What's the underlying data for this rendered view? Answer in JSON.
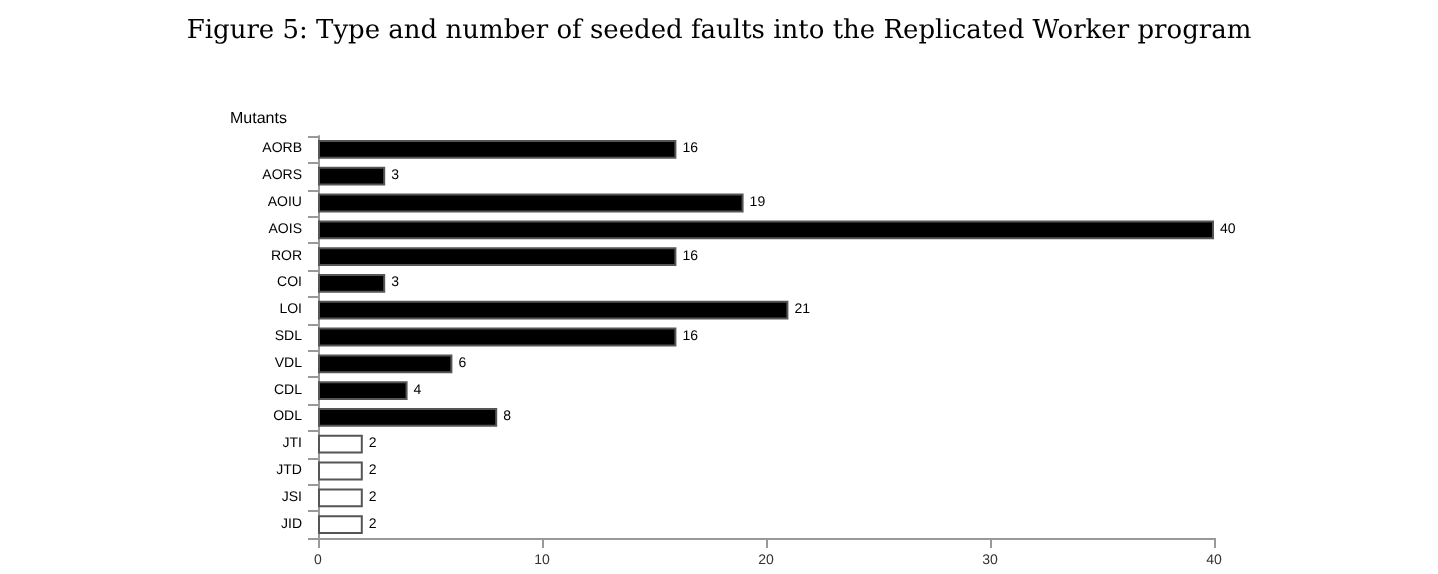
{
  "chart_data": {
    "type": "bar",
    "orientation": "horizontal",
    "title": "Figure 5: Type and number of seeded faults into the Replicated Worker program",
    "ylabel": "Mutants",
    "categories": [
      "AORB",
      "AORS",
      "AOIU",
      "AOIS",
      "ROR",
      "COI",
      "LOI",
      "SDL",
      "VDL",
      "CDL",
      "ODL",
      "JTI",
      "JTD",
      "JSI",
      "JID"
    ],
    "values": [
      16,
      3,
      19,
      40,
      16,
      3,
      21,
      16,
      6,
      4,
      8,
      2,
      2,
      2,
      2
    ],
    "colors": [
      "#000000",
      "#000000",
      "#000000",
      "#000000",
      "#000000",
      "#000000",
      "#000000",
      "#000000",
      "#000000",
      "#000000",
      "#000000",
      "#ffffff",
      "#ffffff",
      "#ffffff",
      "#ffffff"
    ],
    "xlim": [
      0,
      40
    ],
    "xticks": [
      0,
      10,
      20,
      30,
      40
    ],
    "data_labels": true,
    "grid": false
  }
}
